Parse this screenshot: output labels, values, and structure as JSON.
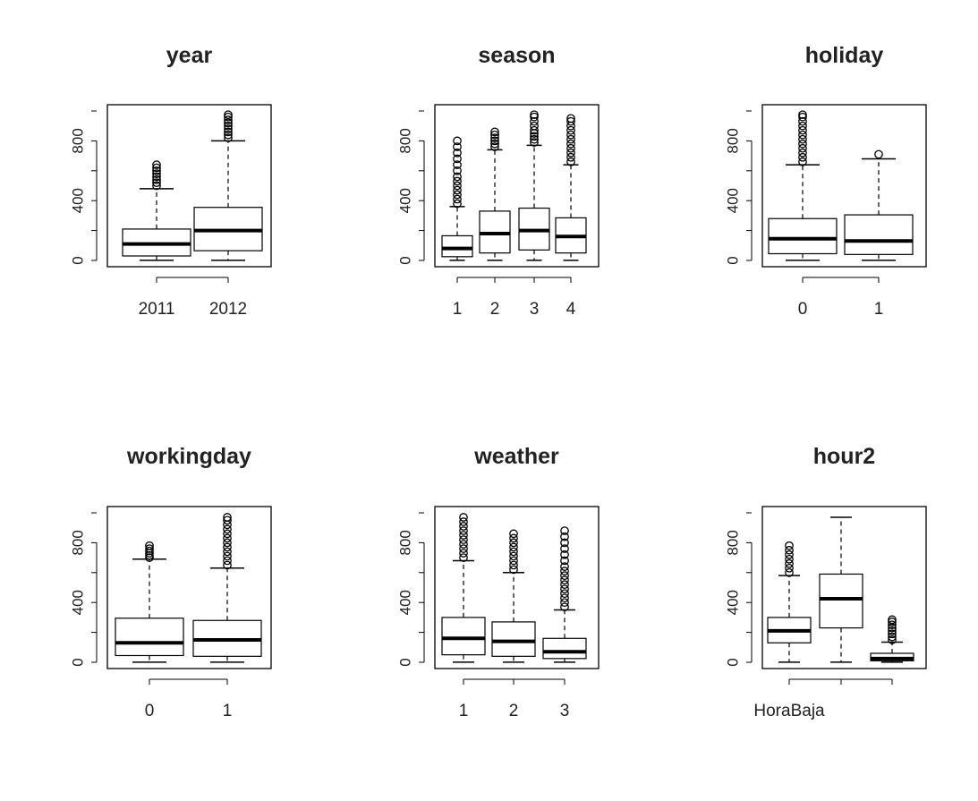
{
  "figure": {
    "background": "#ffffff",
    "ink": "#000000"
  },
  "chart_data": [
    {
      "type": "boxplot",
      "title": "year",
      "xlabel": "",
      "ylabel": "",
      "ylim": [
        0,
        1000
      ],
      "yticks": [
        "0",
        "400",
        "800"
      ],
      "categories": [
        "2011",
        "2012"
      ],
      "boxes": [
        {
          "whisker_low": 1,
          "q1": 30,
          "median": 110,
          "q3": 210,
          "whisker_high": 480,
          "outliers": [
            500,
            520,
            540,
            560,
            580,
            600,
            620,
            640
          ]
        },
        {
          "whisker_low": 1,
          "q1": 65,
          "median": 200,
          "q3": 355,
          "whisker_high": 800,
          "outliers": [
            820,
            840,
            860,
            880,
            900,
            920,
            940,
            960,
            975
          ]
        }
      ]
    },
    {
      "type": "boxplot",
      "title": "season",
      "xlabel": "",
      "ylabel": "",
      "ylim": [
        0,
        1000
      ],
      "yticks": [
        "0",
        "400",
        "800"
      ],
      "categories": [
        "1",
        "2",
        "3",
        "4"
      ],
      "boxes": [
        {
          "whisker_low": 1,
          "q1": 25,
          "median": 80,
          "q3": 165,
          "whisker_high": 360,
          "outliers": [
            380,
            410,
            440,
            470,
            500,
            530,
            560,
            600,
            640,
            680,
            720,
            760,
            800
          ]
        },
        {
          "whisker_low": 1,
          "q1": 50,
          "median": 180,
          "q3": 330,
          "whisker_high": 740,
          "outliers": [
            760,
            780,
            800,
            820,
            840,
            860
          ]
        },
        {
          "whisker_low": 1,
          "q1": 70,
          "median": 200,
          "q3": 350,
          "whisker_high": 770,
          "outliers": [
            790,
            810,
            830,
            850,
            870,
            900,
            930,
            960,
            975
          ]
        },
        {
          "whisker_low": 1,
          "q1": 50,
          "median": 160,
          "q3": 285,
          "whisker_high": 640,
          "outliers": [
            660,
            690,
            720,
            750,
            780,
            810,
            840,
            870,
            900,
            930,
            950
          ]
        }
      ]
    },
    {
      "type": "boxplot",
      "title": "holiday",
      "xlabel": "",
      "ylabel": "",
      "ylim": [
        0,
        1000
      ],
      "yticks": [
        "0",
        "400",
        "800"
      ],
      "categories": [
        "0",
        "1"
      ],
      "boxes": [
        {
          "whisker_low": 1,
          "q1": 45,
          "median": 145,
          "q3": 280,
          "whisker_high": 640,
          "outliers": [
            660,
            690,
            720,
            750,
            780,
            810,
            840,
            870,
            900,
            930,
            960,
            975
          ]
        },
        {
          "whisker_low": 1,
          "q1": 40,
          "median": 130,
          "q3": 305,
          "whisker_high": 680,
          "outliers": [
            710
          ]
        }
      ]
    },
    {
      "type": "boxplot",
      "title": "workingday",
      "xlabel": "",
      "ylabel": "",
      "ylim": [
        0,
        1000
      ],
      "yticks": [
        "0",
        "400",
        "800"
      ],
      "categories": [
        "0",
        "1"
      ],
      "boxes": [
        {
          "whisker_low": 1,
          "q1": 45,
          "median": 130,
          "q3": 295,
          "whisker_high": 690,
          "outliers": [
            700,
            715,
            730,
            745,
            760,
            780
          ]
        },
        {
          "whisker_low": 1,
          "q1": 40,
          "median": 150,
          "q3": 280,
          "whisker_high": 630,
          "outliers": [
            650,
            680,
            710,
            740,
            770,
            800,
            830,
            860,
            890,
            920,
            950,
            970
          ]
        }
      ]
    },
    {
      "type": "boxplot",
      "title": "weather",
      "xlabel": "",
      "ylabel": "",
      "ylim": [
        0,
        1000
      ],
      "yticks": [
        "0",
        "400",
        "800"
      ],
      "categories": [
        "1",
        "2",
        "3"
      ],
      "boxes": [
        {
          "whisker_low": 1,
          "q1": 50,
          "median": 160,
          "q3": 300,
          "whisker_high": 680,
          "outliers": [
            700,
            730,
            760,
            790,
            820,
            850,
            880,
            910,
            940,
            970
          ]
        },
        {
          "whisker_low": 1,
          "q1": 40,
          "median": 140,
          "q3": 270,
          "whisker_high": 600,
          "outliers": [
            620,
            650,
            680,
            710,
            740,
            770,
            800,
            830,
            860
          ]
        },
        {
          "whisker_low": 1,
          "q1": 25,
          "median": 70,
          "q3": 160,
          "whisker_high": 350,
          "outliers": [
            370,
            400,
            430,
            460,
            490,
            520,
            550,
            580,
            610,
            640,
            680,
            720,
            760,
            800,
            840,
            880
          ]
        }
      ]
    },
    {
      "type": "boxplot",
      "title": "hour2",
      "xlabel": "",
      "ylabel": "",
      "ylim": [
        0,
        1000
      ],
      "yticks": [
        "0",
        "400",
        "800"
      ],
      "categories": [
        "HoraBaja",
        "",
        ""
      ],
      "boxes": [
        {
          "whisker_low": 1,
          "q1": 130,
          "median": 210,
          "q3": 300,
          "whisker_high": 580,
          "outliers": [
            600,
            630,
            660,
            690,
            720,
            750,
            780
          ]
        },
        {
          "whisker_low": 1,
          "q1": 230,
          "median": 425,
          "q3": 590,
          "whisker_high": 970,
          "outliers": []
        },
        {
          "whisker_low": 1,
          "q1": 10,
          "median": 25,
          "q3": 60,
          "whisker_high": 135,
          "outliers": [
            150,
            170,
            190,
            210,
            230,
            250,
            270,
            285
          ]
        }
      ]
    }
  ]
}
